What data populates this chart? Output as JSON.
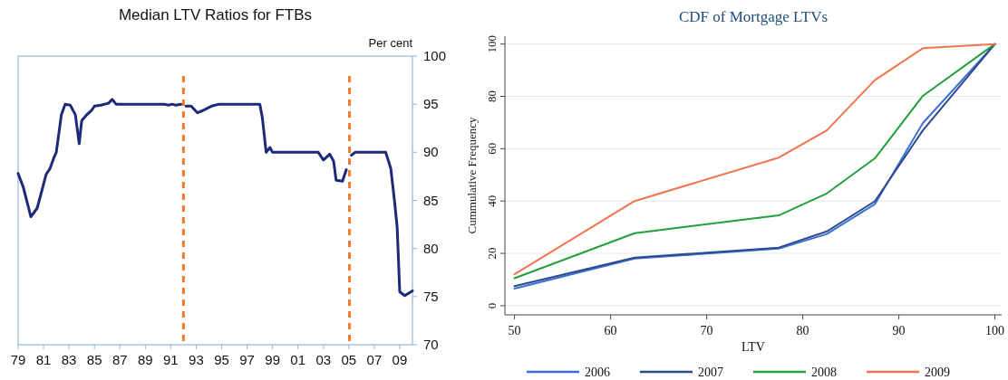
{
  "chart_data": [
    {
      "type": "line",
      "title": "Median LTV Ratios for FTBs",
      "ylabel": "Per cent",
      "x": [
        1979,
        1979.4,
        1980,
        1980.5,
        1981.2,
        1981.5,
        1981.8,
        1982,
        1982.4,
        1982.7,
        1983.1,
        1983.5,
        1983.8,
        1984,
        1984.4,
        1984.8,
        1985,
        1985.5,
        1986.1,
        1986.4,
        1986.7,
        1990.5,
        1990.8,
        1991.1,
        1991.4,
        1991.8,
        1992,
        1992.2,
        1992.6,
        1993.1,
        1993.6,
        1994.2,
        1994.8,
        1998,
        1998.2,
        1998.5,
        1998.8,
        1999,
        2002.6,
        2003,
        2003.5,
        2003.8,
        2004,
        2004.5,
        2004.8,
        2005,
        2005.2,
        2005.5,
        2007.9,
        2008.3,
        2008.6,
        2008.8,
        2009,
        2009.4,
        2010
      ],
      "series": [
        {
          "color": "#1c2a78",
          "values": [
            87.8,
            86.4,
            83.3,
            84.2,
            87.7,
            88.3,
            89.4,
            90,
            93.9,
            95,
            94.9,
            93.9,
            90.9,
            93.3,
            93.9,
            94.4,
            94.8,
            94.9,
            95.1,
            95.5,
            95,
            95,
            94.9,
            95,
            94.9,
            95,
            null,
            94.8,
            94.8,
            94.1,
            94.4,
            94.8,
            95,
            95,
            93.6,
            90,
            90.5,
            90,
            90,
            89.2,
            89.8,
            89.1,
            87.1,
            87,
            88.2,
            null,
            89.7,
            90,
            90,
            88.3,
            84.8,
            82.2,
            75.5,
            75.1,
            75.6
          ]
        }
      ],
      "xlim": [
        1979,
        2010
      ],
      "ylim": [
        70,
        100
      ],
      "yticks": [
        70,
        75,
        80,
        85,
        90,
        95,
        100
      ],
      "xticks": [
        {
          "value": 1979,
          "label": "79"
        },
        {
          "value": 1981,
          "label": "81"
        },
        {
          "value": 1983,
          "label": "83"
        },
        {
          "value": 1985,
          "label": "85"
        },
        {
          "value": 1987,
          "label": "87"
        },
        {
          "value": 1989,
          "label": "89"
        },
        {
          "value": 1991,
          "label": "91"
        },
        {
          "value": 1993,
          "label": "93"
        },
        {
          "value": 1995,
          "label": "95"
        },
        {
          "value": 1997,
          "label": "97"
        },
        {
          "value": 1999,
          "label": "99"
        },
        {
          "value": 2001,
          "label": "01"
        },
        {
          "value": 2003,
          "label": "03"
        },
        {
          "value": 2005,
          "label": "05"
        },
        {
          "value": 2007,
          "label": "07"
        },
        {
          "value": 2009,
          "label": "09"
        }
      ],
      "ref_lines": [
        {
          "axis": "x",
          "value": 1992,
          "color": "#f47c2c",
          "line_style": "dashed"
        },
        {
          "axis": "x",
          "value": 2005.05,
          "color": "#f47c2c",
          "line_style": "dashed"
        }
      ],
      "grid": false,
      "legend": false
    },
    {
      "type": "line",
      "title": "CDF of Mortgage LTVs",
      "xlabel": "LTV",
      "ylabel": "Cummulative Frequency",
      "x": [
        50,
        62.5,
        77.5,
        82.5,
        87.5,
        92.5,
        100
      ],
      "series": [
        {
          "name": "2006",
          "color": "#3b6fd6",
          "values": [
            6.5,
            18,
            21.8,
            27.4,
            38.8,
            69.8,
            100
          ]
        },
        {
          "name": "2007",
          "color": "#2c4a8a",
          "values": [
            7.5,
            18.4,
            22.2,
            28.4,
            39.9,
            67,
            100
          ]
        },
        {
          "name": "2008",
          "color": "#22a03c",
          "values": [
            10.5,
            27.7,
            34.5,
            42.9,
            56.3,
            80.2,
            100
          ]
        },
        {
          "name": "2009",
          "color": "#f4734f",
          "values": [
            12,
            40,
            56.6,
            67,
            86.2,
            98.4,
            100
          ]
        }
      ],
      "xlim": [
        49,
        100.7
      ],
      "ylim": [
        -3.5,
        103
      ],
      "xticks": [
        50,
        60,
        70,
        80,
        90,
        100
      ],
      "yticks": [
        0,
        20,
        40,
        60,
        80,
        100
      ],
      "grid": "y",
      "legend": "bottom"
    }
  ]
}
